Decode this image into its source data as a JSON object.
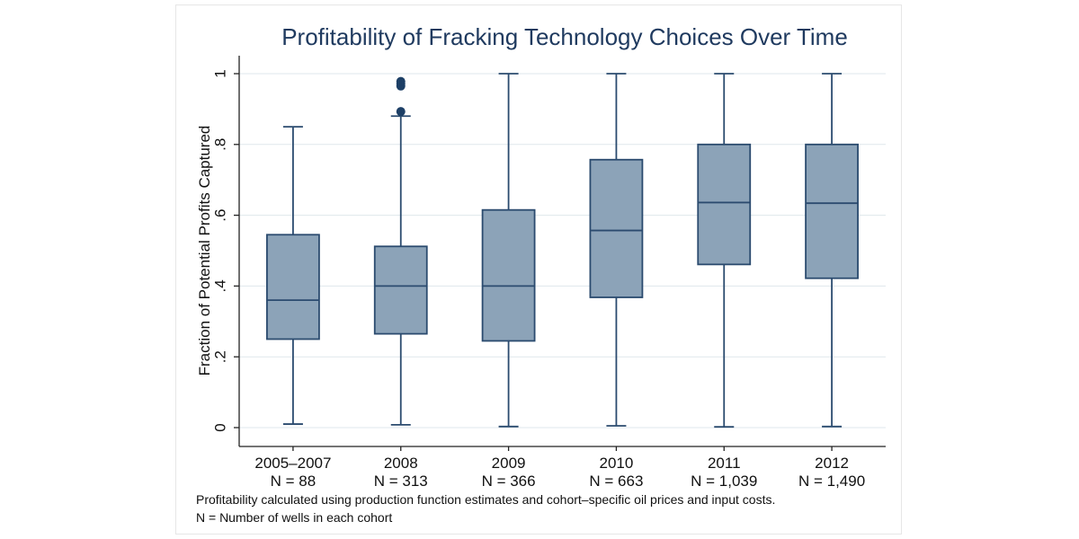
{
  "chart_data": {
    "type": "box",
    "title": "Profitability of Fracking Technology Choices Over Time",
    "ylabel": "Fraction of Potential Profits Captured",
    "xlabel": "",
    "ylim": [
      0,
      1
    ],
    "yticks": [
      0,
      0.2,
      0.4,
      0.6,
      0.8,
      1
    ],
    "ytick_labels": [
      "0",
      ".2",
      ".4",
      ".6",
      ".8",
      "1"
    ],
    "grid": true,
    "colors": {
      "box_fill": "#8ca3b8",
      "box_stroke": "#2b4b6f",
      "outlier": "#1d3f66",
      "grid": "#dfe7ec",
      "title": "#1f3a5f"
    },
    "categories": [
      {
        "label": "2005–2007",
        "n_label": "N = 88",
        "whisker_low": 0.01,
        "q1": 0.25,
        "median": 0.36,
        "q3": 0.545,
        "whisker_high": 0.85,
        "outliers": []
      },
      {
        "label": "2008",
        "n_label": "N = 313",
        "whisker_low": 0.008,
        "q1": 0.265,
        "median": 0.4,
        "q3": 0.512,
        "whisker_high": 0.88,
        "outliers": [
          0.893,
          0.965,
          0.972,
          0.978
        ]
      },
      {
        "label": "2009",
        "n_label": "N = 366",
        "whisker_low": 0.003,
        "q1": 0.245,
        "median": 0.4,
        "q3": 0.615,
        "whisker_high": 1.0,
        "outliers": []
      },
      {
        "label": "2010",
        "n_label": "N = 663",
        "whisker_low": 0.005,
        "q1": 0.368,
        "median": 0.557,
        "q3": 0.757,
        "whisker_high": 1.0,
        "outliers": []
      },
      {
        "label": "2011",
        "n_label": "N = 1,039",
        "whisker_low": 0.002,
        "q1": 0.461,
        "median": 0.636,
        "q3": 0.8,
        "whisker_high": 1.0,
        "outliers": []
      },
      {
        "label": "2012",
        "n_label": "N = 1,490",
        "whisker_low": 0.003,
        "q1": 0.422,
        "median": 0.634,
        "q3": 0.8,
        "whisker_high": 1.0,
        "outliers": []
      }
    ]
  },
  "notes": {
    "line1": "Profitability calculated using production function estimates and cohort–specific oil prices and input costs.",
    "line2": "N = Number of wells in each cohort"
  }
}
